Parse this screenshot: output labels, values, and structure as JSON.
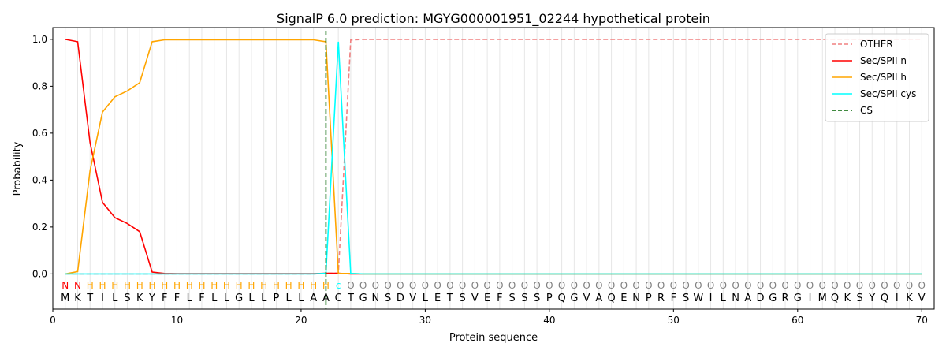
{
  "chart_data": {
    "type": "line",
    "title": "SignalP 6.0 prediction: MGYG000001951_02244 hypothetical protein",
    "xlabel": "Protein sequence",
    "ylabel": "Probability",
    "xlim": [
      0,
      71
    ],
    "ylim": [
      -0.15,
      1.05
    ],
    "x_ticks": [
      0,
      10,
      20,
      30,
      40,
      50,
      60,
      70
    ],
    "y_ticks": [
      0.0,
      0.2,
      0.4,
      0.6,
      0.8,
      1.0
    ],
    "x_tick_labels": [
      "0",
      "10",
      "20",
      "30",
      "40",
      "50",
      "60",
      "70"
    ],
    "y_tick_labels": [
      "0.0",
      "0.2",
      "0.4",
      "0.6",
      "0.8",
      "1.0"
    ],
    "grid": "vertical lines at each residue",
    "legend_position": "top-right",
    "sequence": "MKTILSKYFFLFLLGLLPLLAACTGNSDVLETSVEFSSSPQGVAQENPRFSWILNADGRGIMQKSYQIKV",
    "labels": "NNHHHHHHHHHHHHHHHHHHHHCOOOOOOOOOOOOOOOOOOOOOOOOOOOOOOOOOOOOOOOOOOOOOOO",
    "label_colors": {
      "N": "#ff0000",
      "H": "#ffa500",
      "C": "#00ffff",
      "O": "#808080"
    },
    "cs_position": 22,
    "series": [
      {
        "name": "OTHER",
        "color": "#f08080",
        "style": "dashed",
        "values": [
          0,
          0,
          0,
          0,
          0,
          0,
          0,
          0,
          0,
          0,
          0,
          0,
          0,
          0,
          0,
          0,
          0,
          0,
          0,
          0,
          0,
          0.003,
          0.003,
          0.997,
          1,
          1,
          1,
          1,
          1,
          1,
          1,
          1,
          1,
          1,
          1,
          1,
          1,
          1,
          1,
          1,
          1,
          1,
          1,
          1,
          1,
          1,
          1,
          1,
          1,
          1,
          1,
          1,
          1,
          1,
          1,
          1,
          1,
          1,
          1,
          1,
          1,
          1,
          1,
          1,
          1,
          1,
          1,
          1,
          1,
          1
        ]
      },
      {
        "name": "Sec/SPII n",
        "color": "#ff0000",
        "style": "solid",
        "values": [
          1.0,
          0.99,
          0.56,
          0.305,
          0.24,
          0.215,
          0.18,
          0.008,
          0.002,
          0.001,
          0.001,
          0.001,
          0.001,
          0.001,
          0.001,
          0.001,
          0.001,
          0.001,
          0.001,
          0.001,
          0.001,
          0.003,
          0.003,
          0,
          0,
          0,
          0,
          0,
          0,
          0,
          0,
          0,
          0,
          0,
          0,
          0,
          0,
          0,
          0,
          0,
          0,
          0,
          0,
          0,
          0,
          0,
          0,
          0,
          0,
          0,
          0,
          0,
          0,
          0,
          0,
          0,
          0,
          0,
          0,
          0,
          0,
          0,
          0,
          0,
          0,
          0,
          0,
          0,
          0,
          0
        ]
      },
      {
        "name": "Sec/SPII h",
        "color": "#ffa500",
        "style": "solid",
        "values": [
          0,
          0.01,
          0.44,
          0.69,
          0.755,
          0.78,
          0.815,
          0.99,
          0.998,
          0.998,
          0.998,
          0.998,
          0.998,
          0.998,
          0.998,
          0.998,
          0.998,
          0.998,
          0.998,
          0.998,
          0.998,
          0.99,
          0.002,
          0.002,
          0,
          0,
          0,
          0,
          0,
          0,
          0,
          0,
          0,
          0,
          0,
          0,
          0,
          0,
          0,
          0,
          0,
          0,
          0,
          0,
          0,
          0,
          0,
          0,
          0,
          0,
          0,
          0,
          0,
          0,
          0,
          0,
          0,
          0,
          0,
          0,
          0,
          0,
          0,
          0,
          0,
          0,
          0,
          0,
          0,
          0
        ]
      },
      {
        "name": "Sec/SPII cys",
        "color": "#00ffff",
        "style": "solid",
        "values": [
          0,
          0,
          0,
          0,
          0,
          0,
          0,
          0,
          0,
          0,
          0,
          0,
          0,
          0,
          0,
          0,
          0,
          0,
          0,
          0,
          0,
          0.003,
          0.99,
          0.002,
          0,
          0,
          0,
          0,
          0,
          0,
          0,
          0,
          0,
          0,
          0,
          0,
          0,
          0,
          0,
          0,
          0,
          0,
          0,
          0,
          0,
          0,
          0,
          0,
          0,
          0,
          0,
          0,
          0,
          0,
          0,
          0,
          0,
          0,
          0,
          0,
          0,
          0,
          0,
          0,
          0,
          0,
          0,
          0,
          0,
          0
        ]
      },
      {
        "name": "CS",
        "color": "#006400",
        "style": "dashed",
        "values": []
      }
    ]
  }
}
